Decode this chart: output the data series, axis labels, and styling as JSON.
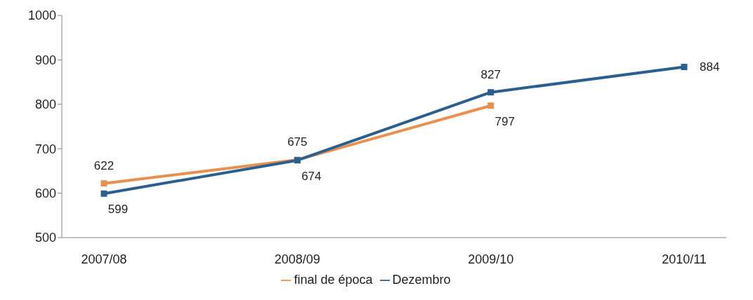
{
  "chart_data": {
    "type": "line",
    "categories": [
      "2007/08",
      "2008/09",
      "2009/10",
      "2010/11"
    ],
    "series": [
      {
        "name": "final de época",
        "color": "#e8904f",
        "values": [
          622,
          675,
          797,
          null
        ]
      },
      {
        "name": "Dezembro",
        "color": "#2b5f8e",
        "values": [
          599,
          674,
          827,
          884
        ]
      }
    ],
    "ylim": [
      500,
      1000
    ],
    "yticks": [
      500,
      600,
      700,
      800,
      900,
      1000
    ],
    "grid": false,
    "legend": "bottom",
    "marker": "square",
    "line_style": "solid",
    "data_labels": true
  }
}
